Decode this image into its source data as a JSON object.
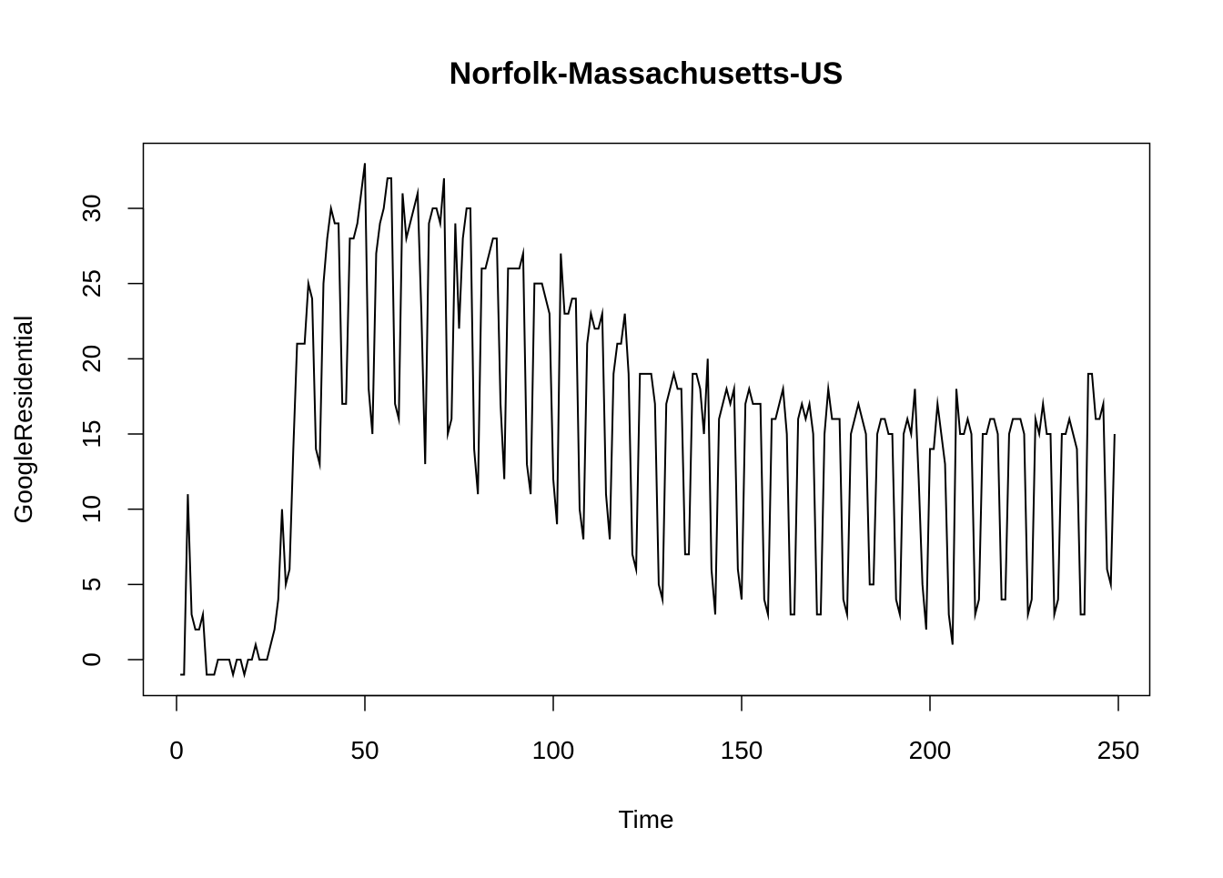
{
  "chart_data": {
    "type": "line",
    "title": "Norfolk-Massachusetts-US",
    "xlabel": "Time",
    "ylabel": "GoogleResidential",
    "xlim": [
      1,
      248
    ],
    "ylim": [
      -1,
      33
    ],
    "x_ticks": [
      0,
      50,
      100,
      150,
      200,
      250
    ],
    "y_ticks": [
      0,
      5,
      10,
      15,
      20,
      25,
      30
    ],
    "x_tick_labels": [
      "0",
      "50",
      "100",
      "150",
      "200",
      "250"
    ],
    "y_tick_labels": [
      "0",
      "5",
      "10",
      "15",
      "20",
      "25",
      "30"
    ],
    "grid": false,
    "line_color": "#000000",
    "series": [
      {
        "values": [
          -1,
          -1,
          11,
          3,
          2,
          2,
          3,
          -1,
          -1,
          -1,
          0,
          0,
          0,
          0,
          -1,
          0,
          0,
          -1,
          0,
          0,
          1,
          0,
          0,
          0,
          1,
          2,
          4,
          10,
          5,
          6,
          14,
          21,
          21,
          21,
          25,
          24,
          14,
          13,
          25,
          28,
          30,
          29,
          29,
          17,
          17,
          28,
          28,
          29,
          31,
          33,
          18,
          15,
          27,
          29,
          30,
          32,
          32,
          17,
          16,
          31,
          28,
          29,
          30,
          31,
          23,
          13,
          29,
          30,
          30,
          29,
          32,
          15,
          16,
          29,
          22,
          28,
          30,
          30,
          14,
          11,
          26,
          26,
          27,
          28,
          28,
          17,
          12,
          26,
          26,
          26,
          26,
          27,
          13,
          11,
          25,
          25,
          25,
          24,
          23,
          12,
          9,
          27,
          23,
          23,
          24,
          24,
          10,
          8,
          21,
          23,
          22,
          22,
          23,
          11,
          8,
          19,
          21,
          21,
          23,
          19,
          7,
          6,
          19,
          19,
          19,
          19,
          17,
          5,
          4,
          17,
          18,
          19,
          18,
          18,
          7,
          7,
          19,
          19,
          18,
          15,
          20,
          6,
          3,
          16,
          17,
          18,
          17,
          18,
          6,
          4,
          17,
          18,
          17,
          17,
          17,
          4,
          3,
          16,
          16,
          17,
          18,
          15,
          3,
          3,
          16,
          17,
          16,
          17,
          15,
          3,
          3,
          15,
          18,
          16,
          16,
          16,
          4,
          3,
          15,
          16,
          17,
          16,
          15,
          5,
          5,
          15,
          16,
          16,
          15,
          15,
          4,
          3,
          15,
          16,
          15,
          18,
          12,
          5,
          2,
          14,
          14,
          17,
          15,
          13,
          3,
          1,
          18,
          15,
          15,
          16,
          15,
          3,
          4,
          15,
          15,
          16,
          16,
          15,
          4,
          4,
          15,
          16,
          16,
          16,
          15,
          3,
          4,
          16,
          15,
          17,
          15,
          15,
          3,
          4,
          15,
          15,
          16,
          15,
          14,
          3,
          3,
          19,
          19,
          16,
          16,
          17,
          6,
          5,
          15
        ]
      }
    ]
  }
}
